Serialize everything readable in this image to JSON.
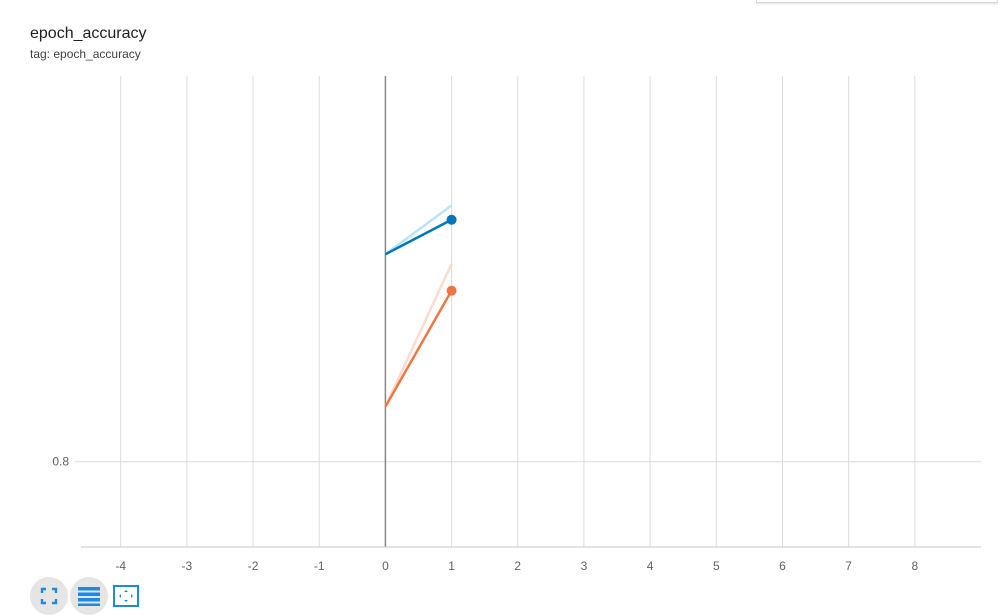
{
  "card": {
    "title": "epoch_accuracy",
    "subtitle": "tag: epoch_accuracy"
  },
  "toolbar": {
    "buttons": [
      {
        "icon": "fullscreen-icon"
      },
      {
        "icon": "data-table-icon"
      },
      {
        "icon": "fit-domain-icon"
      }
    ]
  },
  "colors": {
    "series_blue": "#0077bb",
    "series_blue_raw": "#bbe3f3",
    "series_orange": "#ee7744",
    "series_orange_raw": "#fcdcd0",
    "grid": "#dcdcdc",
    "y_axis": "#888888",
    "axis_line": "#c8c8c8"
  },
  "chart_data": {
    "type": "line",
    "xlim": [
      -4.6,
      9.0
    ],
    "ylim": [
      0.7822,
      0.8805
    ],
    "x_ticks": [
      -4,
      -3,
      -2,
      -1,
      0,
      1,
      2,
      3,
      4,
      5,
      6,
      7,
      8
    ],
    "x_tick_labels": [
      "-4",
      "-3",
      "-2",
      "-1",
      "0",
      "1",
      "2",
      "3",
      "4",
      "5",
      "6",
      "7",
      "8"
    ],
    "y_ticks": [
      0.8
    ],
    "y_tick_labels": [
      "0.8"
    ],
    "grid": true,
    "series": [
      {
        "color_key": "series_blue",
        "raw_color_key": "series_blue_raw",
        "raw": {
          "x": [
            0,
            1
          ],
          "y": [
            0.8433,
            0.8535
          ]
        },
        "smoothed": {
          "x": [
            0,
            1
          ],
          "y": [
            0.8433,
            0.8505
          ]
        }
      },
      {
        "color_key": "series_orange",
        "raw_color_key": "series_orange_raw",
        "raw": {
          "x": [
            0,
            1
          ],
          "y": [
            0.8115,
            0.8413
          ]
        },
        "smoothed": {
          "x": [
            0,
            1
          ],
          "y": [
            0.8115,
            0.8357
          ]
        }
      }
    ]
  }
}
